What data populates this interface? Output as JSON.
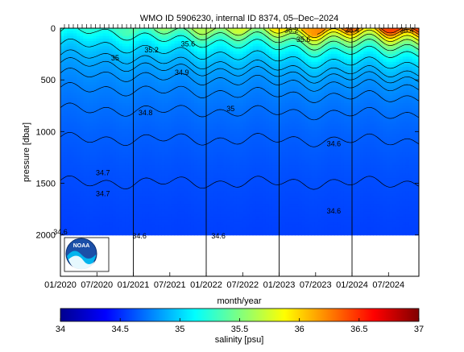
{
  "chart_data": {
    "type": "heatmap",
    "title": "WMO ID 5906230, internal ID 8374, 05–Dec–2024",
    "xlabel": "month/year",
    "ylabel": "pressure [dbar]",
    "colorbar_label": "salinity [psu]",
    "x_ticks": [
      "01/2020",
      "07/2020",
      "01/2021",
      "07/2021",
      "01/2022",
      "07/2022",
      "01/2023",
      "07/2023",
      "01/2024",
      "07/2024"
    ],
    "x_range": [
      "2020-01",
      "2024-12"
    ],
    "y_ticks": [
      0,
      500,
      1000,
      1500,
      2000
    ],
    "y_range": [
      0,
      2400
    ],
    "y_reversed": true,
    "profile_max_pressure": 2000,
    "colorbar_ticks": [
      34,
      34.5,
      35,
      35.5,
      36,
      36.5,
      37
    ],
    "color_range": [
      34,
      37
    ],
    "colormap": "jet",
    "vertical_year_lines": [
      "01/2021",
      "01/2022",
      "01/2023",
      "01/2024"
    ],
    "contour_labels": [
      {
        "text": "34.6",
        "x": "2020-01",
        "y": 1970
      },
      {
        "text": "34.6",
        "x": "2021-02",
        "y": 2010
      },
      {
        "text": "34.6",
        "x": "2022-03",
        "y": 2010
      },
      {
        "text": "34.6",
        "x": "2023-10",
        "y": 1770
      },
      {
        "text": "34.6",
        "x": "2023-10",
        "y": 1120
      },
      {
        "text": "34.7",
        "x": "2020-08",
        "y": 1400
      },
      {
        "text": "34.7",
        "x": "2020-08",
        "y": 1600
      },
      {
        "text": "34.8",
        "x": "2021-03",
        "y": 820
      },
      {
        "text": "34.9",
        "x": "2021-09",
        "y": 430
      },
      {
        "text": "35",
        "x": "2020-10",
        "y": 290
      },
      {
        "text": "35",
        "x": "2022-05",
        "y": 780
      },
      {
        "text": "35.2",
        "x": "2021-04",
        "y": 210
      },
      {
        "text": "35.6",
        "x": "2021-10",
        "y": 150
      },
      {
        "text": "35.6",
        "x": "2023-05",
        "y": 110
      },
      {
        "text": "36.2",
        "x": "2023-03",
        "y": 20
      },
      {
        "text": "36.4",
        "x": "2024-01",
        "y": 20
      },
      {
        "text": "36.4",
        "x": "2024-10",
        "y": 20
      }
    ],
    "surface_salinity": [
      35.3,
      35.2,
      35.3,
      35.5,
      35.6,
      35.6,
      35.8,
      36.0,
      36.2,
      36.3,
      36.4,
      36.4
    ],
    "deep_salinity": 34.55
  },
  "logo": {
    "text": "NOAA"
  },
  "colors": {
    "background": "#ffffff",
    "frame": "#000000",
    "contour": "#000000"
  }
}
